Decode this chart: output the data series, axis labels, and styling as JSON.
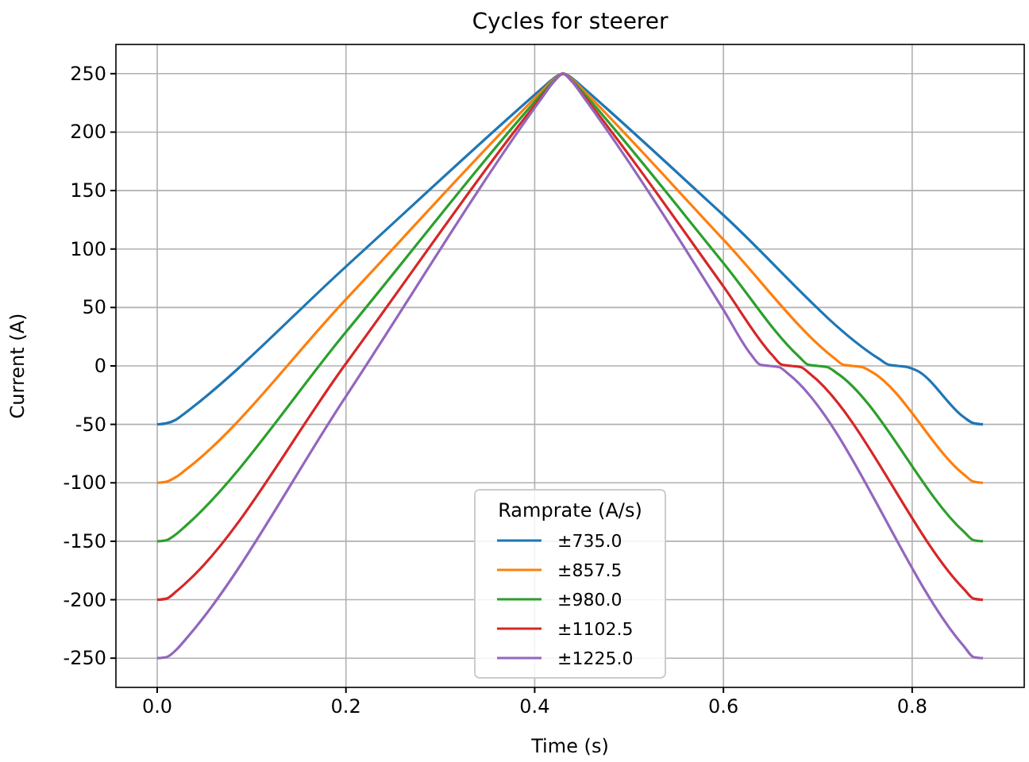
{
  "chart_data": {
    "type": "line",
    "title": "Cycles for steerer",
    "xlabel": "Time (s)",
    "ylabel": "Current (A)",
    "legend_title": "Ramprate (A/s)",
    "legend": "bottom",
    "grid": true,
    "line_style": "solid",
    "xlim": [
      -0.04375,
      0.91875
    ],
    "xticks": [
      {
        "value": 0,
        "label": "0.0"
      },
      {
        "value": 0.2,
        "label": "0.2"
      },
      {
        "value": 0.4,
        "label": "0.4"
      },
      {
        "value": 0.6,
        "label": "0.6"
      },
      {
        "value": 0.8,
        "label": "0.8"
      }
    ],
    "ylim": [
      -275,
      275
    ],
    "yticks": [
      -250,
      -200,
      -150,
      -100,
      -50,
      0,
      50,
      100,
      150,
      200,
      250
    ],
    "series": [
      {
        "name": "±735.0",
        "color": "#1f77b4",
        "x": [
          0,
          0.01,
          0.02,
          0.03,
          0.2,
          0.41,
          0.42,
          0.43,
          0.44,
          0.45,
          0.6,
          0.765,
          0.775,
          0.785,
          0.795,
          0.805,
          0.855,
          0.865,
          0.875
        ],
        "values": [
          -50,
          -49,
          -46,
          -40,
          85,
          239,
          246,
          250,
          246,
          239,
          129,
          6,
          1,
          0,
          -1,
          -4,
          -44,
          -49,
          -50
        ]
      },
      {
        "name": "±857.5",
        "color": "#ff7f0e",
        "x": [
          0,
          0.01,
          0.02,
          0.03,
          0.2,
          0.41,
          0.42,
          0.43,
          0.44,
          0.45,
          0.6,
          0.717,
          0.727,
          0.737,
          0.747,
          0.757,
          0.855,
          0.865,
          0.875
        ],
        "values": [
          -100,
          -99,
          -95,
          -89,
          57,
          237,
          245,
          250,
          245,
          237,
          108,
          7,
          1,
          0,
          -1,
          -5,
          -93,
          -99,
          -100
        ]
      },
      {
        "name": "±980.0",
        "color": "#2ca02c",
        "x": [
          0,
          0.01,
          0.02,
          0.03,
          0.2,
          0.41,
          0.42,
          0.43,
          0.44,
          0.45,
          0.6,
          0.68,
          0.69,
          0.7,
          0.71,
          0.72,
          0.855,
          0.865,
          0.875
        ],
        "values": [
          -150,
          -149,
          -144,
          -137,
          29,
          235,
          244,
          250,
          244,
          235,
          88,
          8,
          1,
          0,
          -1,
          -6,
          -142,
          -149,
          -150
        ]
      },
      {
        "name": "±1102.5",
        "color": "#d62728",
        "x": [
          0,
          0.01,
          0.02,
          0.03,
          0.2,
          0.41,
          0.42,
          0.43,
          0.44,
          0.45,
          0.6,
          0.652,
          0.662,
          0.672,
          0.682,
          0.692,
          0.855,
          0.865,
          0.875
        ],
        "values": [
          -200,
          -199,
          -193,
          -186,
          2,
          233,
          243,
          250,
          243,
          233,
          68,
          9,
          1,
          0,
          -1,
          -7,
          -191,
          -199,
          -200
        ]
      },
      {
        "name": "±1225.0",
        "color": "#9467bd",
        "x": [
          0,
          0.01,
          0.02,
          0.03,
          0.2,
          0.41,
          0.42,
          0.43,
          0.44,
          0.45,
          0.6,
          0.629,
          0.639,
          0.649,
          0.659,
          0.669,
          0.855,
          0.865,
          0.875
        ],
        "values": [
          -250,
          -249,
          -243,
          -234,
          -26,
          232,
          243,
          250,
          243,
          232,
          48,
          10,
          1,
          0,
          -1,
          -7,
          -240,
          -249,
          -250
        ]
      }
    ]
  }
}
